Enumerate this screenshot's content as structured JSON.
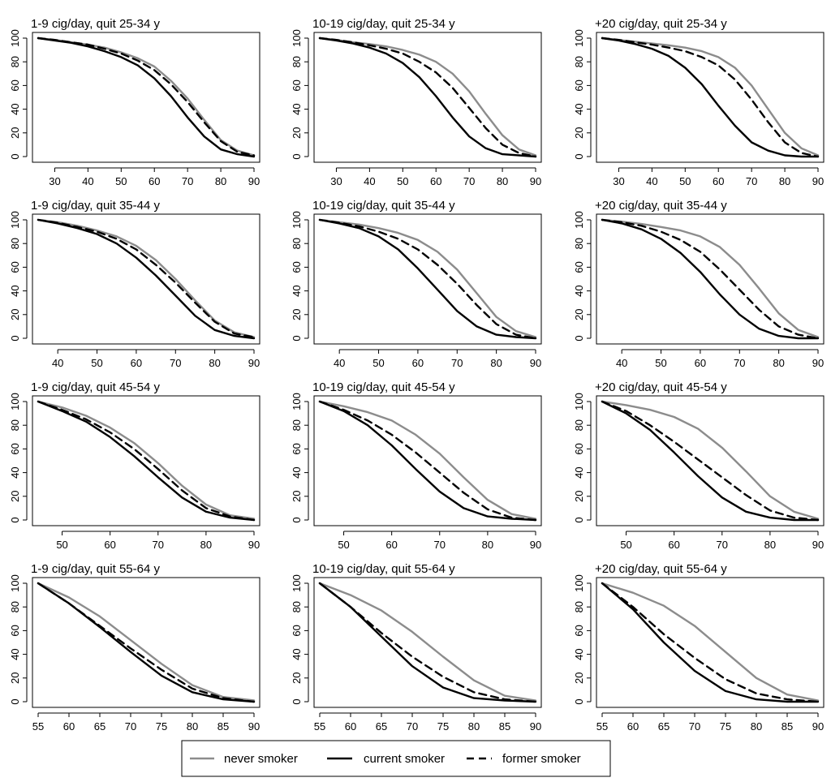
{
  "legend": {
    "never_label": "never smoker",
    "current_label": "current smoker",
    "former_label": "former smoker"
  },
  "colors": {
    "never": "#8c8c8c",
    "current": "#000000",
    "former": "#000000"
  },
  "chart_data": [
    {
      "type": "line",
      "title": "1-9  cig/day,  quit 25-34 y",
      "xlim": [
        25,
        90
      ],
      "xticks": [
        30,
        40,
        50,
        60,
        70,
        80,
        90
      ],
      "ylim": [
        0,
        100
      ],
      "yticks": [
        0,
        20,
        40,
        60,
        80,
        100
      ],
      "x": [
        25,
        30,
        35,
        40,
        45,
        50,
        55,
        60,
        65,
        70,
        75,
        80,
        85,
        90
      ],
      "series": [
        {
          "name": "never smoker",
          "values": [
            100,
            98.5,
            96.5,
            94.5,
            92,
            88,
            83,
            76,
            64,
            49,
            31,
            14,
            5,
            1
          ]
        },
        {
          "name": "current smoker",
          "values": [
            100,
            98,
            96,
            93,
            89,
            84,
            77,
            66,
            51,
            33,
            17,
            6,
            2,
            0
          ]
        },
        {
          "name": "former smoker",
          "values": [
            100,
            98.5,
            96.5,
            94.5,
            91,
            87,
            81,
            73,
            61,
            46,
            29,
            13,
            4,
            1
          ]
        }
      ]
    },
    {
      "type": "line",
      "title": "10-19  cig/day,  quit 25-34 y",
      "xlim": [
        25,
        90
      ],
      "xticks": [
        30,
        40,
        50,
        60,
        70,
        80,
        90
      ],
      "ylim": [
        0,
        100
      ],
      "yticks": [
        0,
        20,
        40,
        60,
        80,
        100
      ],
      "x": [
        25,
        30,
        35,
        40,
        45,
        50,
        55,
        60,
        65,
        70,
        75,
        80,
        85,
        90
      ],
      "series": [
        {
          "name": "never smoker",
          "values": [
            100,
            98.5,
            96.5,
            95,
            93,
            90,
            86,
            80,
            70,
            55,
            36,
            18,
            6,
            1
          ]
        },
        {
          "name": "current smoker",
          "values": [
            100,
            98,
            95.5,
            92,
            87,
            79,
            67,
            51,
            33,
            17,
            7,
            2,
            1,
            0
          ]
        },
        {
          "name": "former smoker",
          "values": [
            100,
            98.5,
            96.5,
            94,
            91,
            87,
            80,
            71,
            58,
            41,
            24,
            10,
            3,
            0
          ]
        }
      ]
    },
    {
      "type": "line",
      "title": "+20  cig/day,  quit 25-34 y",
      "xlim": [
        25,
        90
      ],
      "xticks": [
        30,
        40,
        50,
        60,
        70,
        80,
        90
      ],
      "ylim": [
        0,
        100
      ],
      "yticks": [
        0,
        20,
        40,
        60,
        80,
        100
      ],
      "x": [
        25,
        30,
        35,
        40,
        45,
        50,
        55,
        60,
        65,
        70,
        75,
        80,
        85,
        90
      ],
      "series": [
        {
          "name": "never smoker",
          "values": [
            100,
            98.5,
            97,
            95.5,
            94,
            92,
            89,
            84,
            75,
            60,
            40,
            20,
            7,
            1
          ]
        },
        {
          "name": "current smoker",
          "values": [
            100,
            98,
            95,
            91,
            85,
            75,
            61,
            43,
            26,
            12,
            5,
            1,
            0,
            0
          ]
        },
        {
          "name": "former smoker",
          "values": [
            100,
            98.5,
            96.5,
            94.5,
            92,
            89,
            84,
            77,
            65,
            48,
            29,
            12,
            3,
            0
          ]
        }
      ]
    },
    {
      "type": "line",
      "title": "1-9  cig/day,  quit 35-44 y",
      "xlim": [
        35,
        90
      ],
      "xticks": [
        40,
        50,
        60,
        70,
        80,
        90
      ],
      "ylim": [
        0,
        100
      ],
      "yticks": [
        0,
        20,
        40,
        60,
        80,
        100
      ],
      "x": [
        35,
        40,
        45,
        50,
        55,
        60,
        65,
        70,
        75,
        80,
        85,
        90
      ],
      "series": [
        {
          "name": "never smoker",
          "values": [
            100,
            98,
            95,
            91,
            86,
            78,
            66,
            50,
            32,
            15,
            5,
            1
          ]
        },
        {
          "name": "current smoker",
          "values": [
            100,
            97,
            93,
            88,
            80,
            68,
            53,
            36,
            19,
            7,
            2,
            0
          ]
        },
        {
          "name": "former smoker",
          "values": [
            100,
            97.5,
            94,
            90,
            84,
            75,
            62,
            47,
            30,
            14,
            4,
            1
          ]
        }
      ]
    },
    {
      "type": "line",
      "title": "10-19  cig/day,  quit 35-44 y",
      "xlim": [
        35,
        90
      ],
      "xticks": [
        40,
        50,
        60,
        70,
        80,
        90
      ],
      "ylim": [
        0,
        100
      ],
      "yticks": [
        0,
        20,
        40,
        60,
        80,
        100
      ],
      "x": [
        35,
        40,
        45,
        50,
        55,
        60,
        65,
        70,
        75,
        80,
        85,
        90
      ],
      "series": [
        {
          "name": "never smoker",
          "values": [
            100,
            98,
            96,
            93,
            89,
            83,
            73,
            58,
            38,
            18,
            6,
            1
          ]
        },
        {
          "name": "current smoker",
          "values": [
            100,
            97,
            93,
            86,
            75,
            59,
            41,
            23,
            10,
            3,
            1,
            0
          ]
        },
        {
          "name": "former smoker",
          "values": [
            100,
            97.5,
            94.5,
            90,
            84,
            75,
            62,
            46,
            28,
            12,
            3,
            0
          ]
        }
      ]
    },
    {
      "type": "line",
      "title": "+20  cig/day,  quit 35-44 y",
      "xlim": [
        35,
        90
      ],
      "xticks": [
        40,
        50,
        60,
        70,
        80,
        90
      ],
      "ylim": [
        0,
        100
      ],
      "yticks": [
        0,
        20,
        40,
        60,
        80,
        100
      ],
      "x": [
        35,
        40,
        45,
        50,
        55,
        60,
        65,
        70,
        75,
        80,
        85,
        90
      ],
      "series": [
        {
          "name": "never smoker",
          "values": [
            100,
            98.5,
            96.5,
            94,
            91,
            86,
            77,
            62,
            42,
            21,
            7,
            1
          ]
        },
        {
          "name": "current smoker",
          "values": [
            100,
            97,
            92,
            84,
            72,
            56,
            37,
            20,
            8,
            2,
            0,
            0
          ]
        },
        {
          "name": "former smoker",
          "values": [
            100,
            98,
            95,
            90,
            83,
            73,
            58,
            41,
            24,
            10,
            3,
            0
          ]
        }
      ]
    },
    {
      "type": "line",
      "title": "1-9  cig/day,  quit 45-54 y",
      "xlim": [
        45,
        90
      ],
      "xticks": [
        50,
        60,
        70,
        80,
        90
      ],
      "ylim": [
        0,
        100
      ],
      "yticks": [
        0,
        20,
        40,
        60,
        80,
        100
      ],
      "x": [
        45,
        50,
        55,
        60,
        65,
        70,
        75,
        80,
        85,
        90
      ],
      "series": [
        {
          "name": "never smoker",
          "values": [
            100,
            95,
            88,
            78,
            65,
            48,
            29,
            13,
            4,
            1
          ]
        },
        {
          "name": "current smoker",
          "values": [
            100,
            92,
            83,
            70,
            54,
            36,
            19,
            7,
            2,
            0
          ]
        },
        {
          "name": "former smoker",
          "values": [
            100,
            93,
            85,
            74,
            60,
            43,
            25,
            10,
            3,
            0
          ]
        }
      ]
    },
    {
      "type": "line",
      "title": "10-19  cig/day,  quit 45-54 y",
      "xlim": [
        45,
        90
      ],
      "xticks": [
        50,
        60,
        70,
        80,
        90
      ],
      "ylim": [
        0,
        100
      ],
      "yticks": [
        0,
        20,
        40,
        60,
        80,
        100
      ],
      "x": [
        45,
        50,
        55,
        60,
        65,
        70,
        75,
        80,
        85,
        90
      ],
      "series": [
        {
          "name": "never smoker",
          "values": [
            100,
            96,
            91,
            84,
            72,
            56,
            36,
            17,
            5,
            1
          ]
        },
        {
          "name": "current smoker",
          "values": [
            100,
            92,
            80,
            63,
            43,
            24,
            10,
            3,
            1,
            0
          ]
        },
        {
          "name": "former smoker",
          "values": [
            100,
            93,
            84,
            72,
            57,
            40,
            23,
            9,
            2,
            0
          ]
        }
      ]
    },
    {
      "type": "line",
      "title": "+20  cig/day,  quit 45-54 y",
      "xlim": [
        45,
        90
      ],
      "xticks": [
        50,
        60,
        70,
        80,
        90
      ],
      "ylim": [
        0,
        100
      ],
      "yticks": [
        0,
        20,
        40,
        60,
        80,
        100
      ],
      "x": [
        45,
        50,
        55,
        60,
        65,
        70,
        75,
        80,
        85,
        90
      ],
      "series": [
        {
          "name": "never smoker",
          "values": [
            100,
            97,
            93,
            87,
            77,
            61,
            41,
            20,
            7,
            1
          ]
        },
        {
          "name": "current smoker",
          "values": [
            100,
            90,
            76,
            57,
            37,
            19,
            7,
            2,
            0,
            0
          ]
        },
        {
          "name": "former smoker",
          "values": [
            100,
            92,
            80,
            66,
            51,
            36,
            21,
            8,
            2,
            0
          ]
        }
      ]
    },
    {
      "type": "line",
      "title": "1-9  cig/day,  quit 55-64 y",
      "xlim": [
        55,
        90
      ],
      "xticks": [
        55,
        60,
        65,
        70,
        75,
        80,
        85,
        90
      ],
      "ylim": [
        0,
        100
      ],
      "yticks": [
        0,
        20,
        40,
        60,
        80,
        100
      ],
      "x": [
        55,
        60,
        65,
        70,
        75,
        80,
        85,
        90
      ],
      "series": [
        {
          "name": "never smoker",
          "values": [
            100,
            88,
            72,
            52,
            32,
            14,
            4,
            1
          ]
        },
        {
          "name": "current smoker",
          "values": [
            100,
            83,
            63,
            42,
            22,
            8,
            2,
            0
          ]
        },
        {
          "name": "former smoker",
          "values": [
            100,
            83,
            64,
            45,
            27,
            11,
            3,
            0
          ]
        }
      ]
    },
    {
      "type": "line",
      "title": "10-19  cig/day,  quit 55-64 y",
      "xlim": [
        55,
        90
      ],
      "xticks": [
        55,
        60,
        65,
        70,
        75,
        80,
        85,
        90
      ],
      "ylim": [
        0,
        100
      ],
      "yticks": [
        0,
        20,
        40,
        60,
        80,
        100
      ],
      "x": [
        55,
        60,
        65,
        70,
        75,
        80,
        85,
        90
      ],
      "series": [
        {
          "name": "never smoker",
          "values": [
            100,
            90,
            77,
            59,
            38,
            18,
            5,
            1
          ]
        },
        {
          "name": "current smoker",
          "values": [
            100,
            80,
            55,
            30,
            12,
            3,
            1,
            0
          ]
        },
        {
          "name": "former smoker",
          "values": [
            100,
            80,
            58,
            38,
            21,
            8,
            2,
            0
          ]
        }
      ]
    },
    {
      "type": "line",
      "title": "+20  cig/day,  quit 55-64 y",
      "xlim": [
        55,
        90
      ],
      "xticks": [
        55,
        60,
        65,
        70,
        75,
        80,
        85,
        90
      ],
      "ylim": [
        0,
        100
      ],
      "yticks": [
        0,
        20,
        40,
        60,
        80,
        100
      ],
      "x": [
        55,
        60,
        65,
        70,
        75,
        80,
        85,
        90
      ],
      "series": [
        {
          "name": "never smoker",
          "values": [
            100,
            92,
            81,
            64,
            42,
            20,
            6,
            1
          ]
        },
        {
          "name": "current smoker",
          "values": [
            100,
            78,
            50,
            26,
            9,
            2,
            0,
            0
          ]
        },
        {
          "name": "former smoker",
          "values": [
            100,
            80,
            57,
            37,
            19,
            7,
            2,
            0
          ]
        }
      ]
    }
  ]
}
